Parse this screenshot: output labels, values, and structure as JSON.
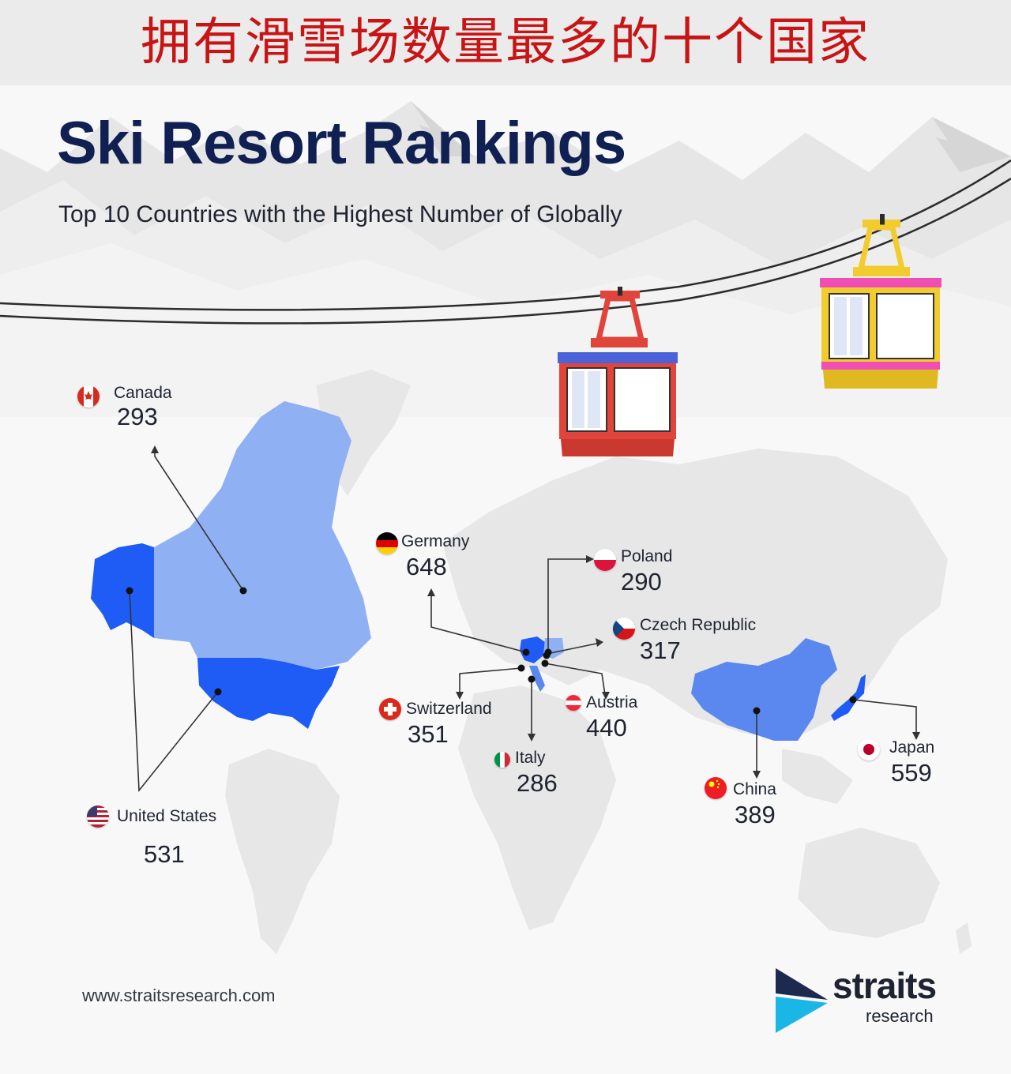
{
  "banner": {
    "title": "拥有滑雪场数量最多的十个国家"
  },
  "poster": {
    "title": "Ski Resort Rankings",
    "subtitle": "Top 10 Countries with the Highest Number of Globally",
    "website": "www.straitsresearch.com",
    "logo": {
      "word": "straits",
      "sub": "research"
    }
  },
  "colors": {
    "banner_text": "#c81414",
    "title": "#102052",
    "highlight_dark": "#1f5cf5",
    "highlight_mid": "#5b88ef",
    "highlight_light": "#8fb0f2",
    "map_land": "#e7e7e7",
    "gondola_red": "#e0443a",
    "gondola_yellow": "#f2cc2e"
  },
  "countries": [
    {
      "name": "Canada",
      "value": "293",
      "flag": "canada-flag-icon"
    },
    {
      "name": "Germany",
      "value": "648",
      "flag": "germany-flag-icon"
    },
    {
      "name": "Poland",
      "value": "290",
      "flag": "poland-flag-icon"
    },
    {
      "name": "Czech Republic",
      "value": "317",
      "flag": "czech-flag-icon"
    },
    {
      "name": "Switzerland",
      "value": "351",
      "flag": "switzerland-flag-icon"
    },
    {
      "name": "Austria",
      "value": "440",
      "flag": "austria-flag-icon"
    },
    {
      "name": "Italy",
      "value": "286",
      "flag": "italy-flag-icon"
    },
    {
      "name": "China",
      "value": "389",
      "flag": "china-flag-icon"
    },
    {
      "name": "Japan",
      "value": "559",
      "flag": "japan-flag-icon"
    },
    {
      "name": "United States",
      "value": "531",
      "flag": "usa-flag-icon"
    }
  ]
}
